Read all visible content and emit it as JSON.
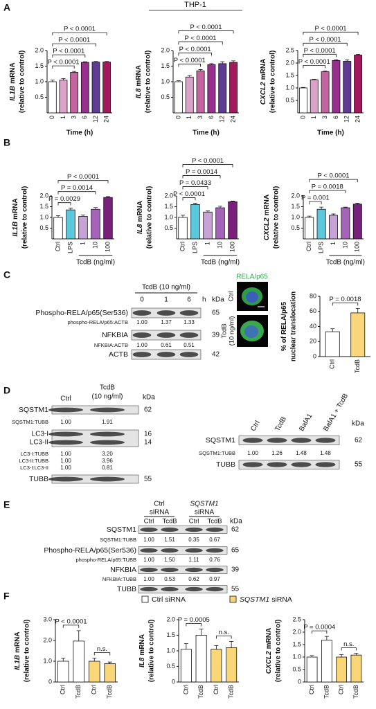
{
  "panel_labels": [
    "A",
    "B",
    "C",
    "D",
    "E",
    "F"
  ],
  "cell_line": "THP-1",
  "chart_data": [
    {
      "type": "bar",
      "ylabel_gene": "IL1B",
      "ylabel": "mRNA",
      "ylabel2": "(relative to control)",
      "xlabel": "Time (h)",
      "categories": [
        "0",
        "1",
        "3",
        "6",
        "12",
        "24"
      ],
      "values": [
        1.0,
        1.05,
        1.3,
        1.62,
        1.63,
        1.63
      ],
      "errors": [
        0.05,
        0.05,
        0.03,
        0.02,
        0.02,
        0.02
      ],
      "colors": [
        "#ffffff",
        "#dca3c9",
        "#c4649f",
        "#982f8d",
        "#5f3c93",
        "#a3195b"
      ],
      "ylim": [
        0,
        2
      ],
      "yticks": [
        0.5,
        {
          "value": 1,
          "label": "1.0"
        },
        1.5,
        {
          "value": 2,
          "label": "2.0"
        }
      ],
      "brackets": [
        {
          "from": 0,
          "to": 2,
          "label": "P < 0.0001"
        },
        {
          "from": 0,
          "to": 3,
          "label": "P < 0.0001"
        },
        {
          "from": 0,
          "to": 4,
          "label": "P < 0.0001"
        },
        {
          "from": 0,
          "to": 5,
          "label": "P < 0.0001"
        }
      ]
    },
    {
      "type": "bar",
      "ylabel_gene": "IL8",
      "ylabel": "mRNA",
      "ylabel2": "(relative to control)",
      "xlabel": "Time (h)",
      "categories": [
        "0",
        "1",
        "3",
        "6",
        "12",
        "24"
      ],
      "values": [
        1.0,
        1.15,
        1.35,
        1.55,
        1.58,
        1.62
      ],
      "errors": [
        0.03,
        0.05,
        0.04,
        0.03,
        0.06,
        0.05
      ],
      "colors": [
        "#ffffff",
        "#dca3c9",
        "#c4649f",
        "#982f8d",
        "#5f3c93",
        "#a3195b"
      ],
      "ylim": [
        0,
        2
      ],
      "yticks": [
        0.5,
        {
          "value": 1,
          "label": "1.0"
        },
        1.5,
        {
          "value": 2,
          "label": "2.0"
        }
      ],
      "brackets": [
        {
          "from": 0,
          "to": 2,
          "label": "P < 0.0001"
        },
        {
          "from": 0,
          "to": 3,
          "label": "P < 0.0001"
        },
        {
          "from": 0,
          "to": 4,
          "label": "P < 0.0001"
        },
        {
          "from": 0,
          "to": 5,
          "label": "P < 0.0001"
        }
      ]
    },
    {
      "type": "bar",
      "ylabel_gene": "CXCL2",
      "ylabel": "mRNA",
      "ylabel2": "(relative to control)",
      "xlabel": "Time (h)",
      "categories": [
        "0",
        "1",
        "3",
        "6",
        "12",
        "24"
      ],
      "values": [
        1.0,
        1.33,
        1.65,
        2.1,
        2.07,
        2.32
      ],
      "errors": [
        0.02,
        0.02,
        0.03,
        0.03,
        0.05,
        0.03
      ],
      "colors": [
        "#ffffff",
        "#dca3c9",
        "#c4649f",
        "#982f8d",
        "#5f3c93",
        "#a3195b"
      ],
      "ylim": [
        0,
        2.5
      ],
      "yticks": [
        0.5,
        {
          "value": 1,
          "label": "1.0"
        },
        1.5,
        {
          "value": 2,
          "label": "2.0"
        },
        2.5
      ],
      "brackets": [
        {
          "from": 0,
          "to": 2,
          "label": "P < 0.0001"
        },
        {
          "from": 0,
          "to": 3,
          "label": "P < 0.0001"
        },
        {
          "from": 0,
          "to": 4,
          "label": "P < 0.0001"
        },
        {
          "from": 0,
          "to": 5,
          "label": "P < 0.0001"
        }
      ]
    },
    {
      "type": "bar",
      "ylabel_gene": "IL1B",
      "ylabel": "mRNA",
      "ylabel2": "(relative to control)",
      "group_label": "TcdB (ng/ml)",
      "categories": [
        "Ctrl",
        "LPS",
        "1",
        "10",
        "100"
      ],
      "values": [
        1.0,
        1.35,
        1.05,
        1.38,
        1.93
      ],
      "errors": [
        0.08,
        0.08,
        0.06,
        0.08,
        0.04
      ],
      "colors": [
        "#ffffff",
        "#5cc8dc",
        "#c7a3d6",
        "#a563b9",
        "#7b1f7d"
      ],
      "ylim": [
        0,
        2
      ],
      "yticks": [
        0.5,
        {
          "value": 1,
          "label": "1.0"
        },
        1.5,
        {
          "value": 2,
          "label": "2.0"
        }
      ],
      "brackets": [
        {
          "from": 0,
          "to": 1,
          "label": "P = 0.0029"
        },
        {
          "from": 0,
          "to": 3,
          "label": "P = 0.0014"
        },
        {
          "from": 0,
          "to": 4,
          "label": "P < 0.0001"
        }
      ]
    },
    {
      "type": "bar",
      "ylabel_gene": "IL8",
      "ylabel": "mRNA",
      "ylabel2": "(relative to control)",
      "group_label": "TcdB (ng/ml)",
      "categories": [
        "Ctrl",
        "LPS",
        "1",
        "10",
        "100"
      ],
      "values": [
        1.0,
        1.6,
        1.25,
        1.45,
        1.73
      ],
      "errors": [
        0.1,
        0.06,
        0.05,
        0.07,
        0.03
      ],
      "colors": [
        "#ffffff",
        "#5cc8dc",
        "#c7a3d6",
        "#a563b9",
        "#7b1f7d"
      ],
      "ylim": [
        0,
        2
      ],
      "yticks": [
        0.5,
        {
          "value": 1,
          "label": "1.0"
        },
        1.5,
        {
          "value": 2,
          "label": "2.0"
        }
      ],
      "brackets": [
        {
          "from": 0,
          "to": 1,
          "label": "P < 0.0001"
        },
        {
          "from": 0,
          "to": 2,
          "label": "P = 0.0433"
        },
        {
          "from": 0,
          "to": 3,
          "label": "P = 0.0014"
        },
        {
          "from": 0,
          "to": 4,
          "label": "P < 0.0001"
        }
      ]
    },
    {
      "type": "bar",
      "ylabel_gene": "CXCL2",
      "ylabel": "mRNA",
      "ylabel2": "(relative to control)",
      "group_label": "TcdB (ng/ml)",
      "categories": [
        "Ctrl",
        "LPS",
        "1",
        "10",
        "100"
      ],
      "values": [
        1.0,
        1.38,
        1.1,
        1.45,
        1.62
      ],
      "errors": [
        0.06,
        0.1,
        0.06,
        0.03,
        0.04
      ],
      "colors": [
        "#ffffff",
        "#5cc8dc",
        "#c7a3d6",
        "#a563b9",
        "#7b1f7d"
      ],
      "ylim": [
        0,
        2
      ],
      "yticks": [
        0.5,
        {
          "value": 1,
          "label": "1.0"
        },
        1.5,
        {
          "value": 2,
          "label": "2.0"
        }
      ],
      "brackets": [
        {
          "from": 0,
          "to": 1,
          "label": "P = 0.001"
        },
        {
          "from": 0,
          "to": 3,
          "label": "P = 0.0018"
        },
        {
          "from": 0,
          "to": 4,
          "label": "P < 0.0001"
        }
      ]
    },
    {
      "type": "bar",
      "ylabel": "% of RELA/p65",
      "ylabel2": "nuclear translocation",
      "categories": [
        "Ctrl",
        "TcdB"
      ],
      "values": [
        33,
        58
      ],
      "errors": [
        4,
        6
      ],
      "colors": [
        "#ffffff",
        "#f9d778"
      ],
      "ylim": [
        0,
        80
      ],
      "yticks": [
        0,
        20,
        40,
        60,
        80
      ],
      "brackets": [
        {
          "from": 0,
          "to": 1,
          "label": "P = 0.0018"
        }
      ]
    },
    {
      "type": "bar",
      "ylabel_gene": "IL1B",
      "ylabel": "mRNA",
      "ylabel2": "(relative to control)",
      "categories": [
        "Ctrl",
        "TcdB",
        "Ctrl",
        "TcdB"
      ],
      "values": [
        1.0,
        1.97,
        1.0,
        0.88
      ],
      "errors": [
        0.15,
        0.5,
        0.15,
        0.08
      ],
      "colors": [
        "#ffffff",
        "#ffffff",
        "#f9d778",
        "#f9d778"
      ],
      "ylim": [
        0,
        3
      ],
      "yticks": [
        0,
        {
          "value": 1,
          "label": "1.0"
        },
        {
          "value": 2,
          "label": "2.0"
        },
        {
          "value": 3,
          "label": "3.0"
        }
      ],
      "brackets": [
        {
          "from": 0,
          "to": 1,
          "label": "P < 0.0001"
        },
        {
          "from": 2,
          "to": 3,
          "label": "n.s."
        }
      ]
    },
    {
      "type": "bar",
      "ylabel_gene": "IL8",
      "ylabel": "mRNA",
      "ylabel2": "(relative to control)",
      "categories": [
        "Ctrl",
        "TcdB",
        "Ctrl",
        "TcdB"
      ],
      "values": [
        1.05,
        1.5,
        1.05,
        1.1
      ],
      "errors": [
        0.18,
        0.2,
        0.12,
        0.2
      ],
      "colors": [
        "#ffffff",
        "#ffffff",
        "#f9d778",
        "#f9d778"
      ],
      "ylim": [
        0,
        2
      ],
      "yticks": [
        0,
        0.5,
        {
          "value": 1,
          "label": "1.0"
        },
        1.5,
        {
          "value": 2,
          "label": "2.0"
        }
      ],
      "brackets": [
        {
          "from": 0,
          "to": 1,
          "label": "P = 0.0005"
        },
        {
          "from": 2,
          "to": 3,
          "label": "n.s."
        }
      ]
    },
    {
      "type": "bar",
      "ylabel_gene": "CXCL2",
      "ylabel": "mRNA",
      "ylabel2": "(relative to control)",
      "categories": [
        "Ctrl",
        "TcdB",
        "Ctrl",
        "TcdB"
      ],
      "values": [
        1.0,
        1.68,
        1.0,
        1.08
      ],
      "errors": [
        0.06,
        0.15,
        0.1,
        0.07
      ],
      "colors": [
        "#ffffff",
        "#ffffff",
        "#f9d778",
        "#f9d778"
      ],
      "ylim": [
        0,
        2.5
      ],
      "yticks": [
        0,
        0.5,
        {
          "value": 1,
          "label": "1.0"
        },
        1.5,
        {
          "value": 2,
          "label": "2.0"
        },
        2.5
      ],
      "brackets": [
        {
          "from": 0,
          "to": 1,
          "label": "P = 0.0004"
        },
        {
          "from": 2,
          "to": 3,
          "label": "n.s."
        }
      ]
    }
  ],
  "panel_c_blot": {
    "treatment": "TcdB (10 ng/ml)",
    "lanes": [
      "0",
      "1",
      "6"
    ],
    "unit": "h",
    "kda_header": "kDa",
    "rows": [
      {
        "label": "Phospho-RELA/p65(Ser536)",
        "kda": 65
      },
      {
        "ratio": "phospho-RELA/p65:ACTB",
        "values": [
          "1.00",
          "1.37",
          "1.33"
        ]
      },
      {
        "label": "NFKBIA",
        "kda": 39
      },
      {
        "ratio": "NFKBIA:ACTB",
        "values": [
          "1.00",
          "0.61",
          "0.51"
        ]
      },
      {
        "label": "ACTB",
        "kda": 42
      }
    ]
  },
  "panel_c_images": {
    "stain": "RELA/p65",
    "ctrl": "Ctrl",
    "treated": "TcdB",
    "treated_dose": "(10 ng/ml)"
  },
  "panel_d_left_blot": {
    "lanes": [
      "Ctrl",
      "TcdB"
    ],
    "treated_dose": "(10 ng/ml)",
    "kda_header": "kDa",
    "rows": [
      {
        "label": "SQSTM1",
        "kda": 62
      },
      {
        "ratio": "SQSTM1:TUBB",
        "values": [
          "1.00",
          "1.91"
        ]
      },
      {
        "labels": [
          "LC3-I",
          "LC3-II"
        ],
        "kda": [
          16,
          14
        ]
      },
      {
        "ratio": "LC3-I:TUBB",
        "values": [
          "1.00",
          "3.20"
        ]
      },
      {
        "ratio": "LC3-II:TUBB",
        "values": [
          "1.00",
          "3.96"
        ]
      },
      {
        "ratio": "LC3-I:LC3-II",
        "values": [
          "1.00",
          "0.81"
        ]
      },
      {
        "label": "TUBB",
        "kda": 55
      }
    ]
  },
  "panel_d_right_blot": {
    "lanes": [
      "Ctrl",
      "TcdB",
      "BafA1",
      "BafA1 + TcdB"
    ],
    "kda_header": "kDa",
    "rows": [
      {
        "label": "SQSTM1",
        "kda": 62
      },
      {
        "ratio": "SQSTM1:TUBB",
        "values": [
          "1.00",
          "1.26",
          "1.48",
          "1.48"
        ]
      },
      {
        "label": "TUBB",
        "kda": 55
      }
    ]
  },
  "panel_e_blot": {
    "groups": [
      {
        "name": "Ctrl",
        "sub": "siRNA"
      },
      {
        "name": "SQSTM1",
        "sub": "siRNA"
      }
    ],
    "lanes": [
      "Ctrl",
      "TcdB",
      "Ctrl",
      "TcdB"
    ],
    "kda_header": "kDa",
    "rows": [
      {
        "label": "SQSTM1",
        "kda": 62
      },
      {
        "ratio": "SQSTM1:TUBB",
        "values": [
          "1.00",
          "1.51",
          "0.35",
          "0.67"
        ]
      },
      {
        "label": "Phospho-RELA/p65(Ser536)",
        "kda": 65
      },
      {
        "ratio": "phospho-RELA/p65:TUBB",
        "values": [
          "1.00",
          "1.50",
          "1.11",
          "0.76"
        ]
      },
      {
        "label": "NFKBIA",
        "kda": 39
      },
      {
        "ratio": "NFKBIA:TUBB",
        "values": [
          "1.00",
          "0.53",
          "0.62",
          "0.97"
        ]
      },
      {
        "label": "TUBB",
        "kda": 55
      }
    ]
  },
  "panel_f_legend": [
    {
      "label": "Ctrl siRNA",
      "color": "#ffffff"
    },
    {
      "gene": "SQSTM1",
      "label": "siRNA",
      "color": "#f9d778"
    }
  ]
}
